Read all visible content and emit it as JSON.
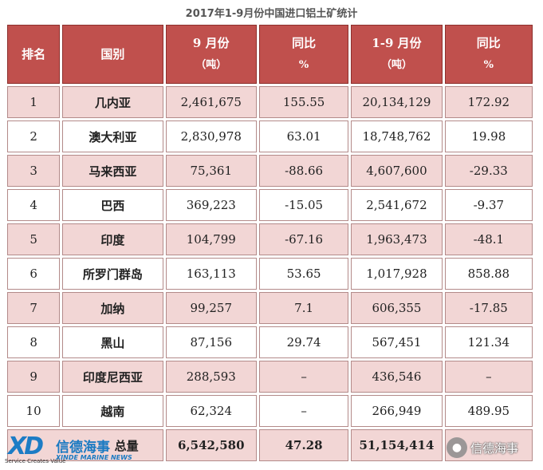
{
  "title": "2017年1-9月份中国进口铝土矿统计",
  "headers": {
    "rank": "排名",
    "country": "国别",
    "sep": "9 月份",
    "sep_unit": "（吨）",
    "sep_yoy": "同比",
    "sep_yoy_unit": "%",
    "ytd": "1-9 月份",
    "ytd_unit": "（吨）",
    "ytd_yoy": "同比",
    "ytd_yoy_unit": "%"
  },
  "rows": [
    {
      "rank": "1",
      "country": "几内亚",
      "sep": "2,461,675",
      "sep_yoy": "155.55",
      "ytd": "20,134,129",
      "ytd_yoy": "172.92"
    },
    {
      "rank": "2",
      "country": "澳大利亚",
      "sep": "2,830,978",
      "sep_yoy": "63.01",
      "ytd": "18,748,762",
      "ytd_yoy": "19.98"
    },
    {
      "rank": "3",
      "country": "马来西亚",
      "sep": "75,361",
      "sep_yoy": "-88.66",
      "ytd": "4,607,600",
      "ytd_yoy": "-29.33"
    },
    {
      "rank": "4",
      "country": "巴西",
      "sep": "369,223",
      "sep_yoy": "-15.05",
      "ytd": "2,541,672",
      "ytd_yoy": "-9.37"
    },
    {
      "rank": "5",
      "country": "印度",
      "sep": "104,799",
      "sep_yoy": "-67.16",
      "ytd": "1,963,473",
      "ytd_yoy": "-48.1"
    },
    {
      "rank": "6",
      "country": "所罗门群岛",
      "sep": "163,113",
      "sep_yoy": "53.65",
      "ytd": "1,017,928",
      "ytd_yoy": "858.88"
    },
    {
      "rank": "7",
      "country": "加纳",
      "sep": "99,257",
      "sep_yoy": "7.1",
      "ytd": "606,355",
      "ytd_yoy": "-17.85"
    },
    {
      "rank": "8",
      "country": "黑山",
      "sep": "87,156",
      "sep_yoy": "29.74",
      "ytd": "567,451",
      "ytd_yoy": "121.34"
    },
    {
      "rank": "9",
      "country": "印度尼西亚",
      "sep": "288,593",
      "sep_yoy": "–",
      "ytd": "436,546",
      "ytd_yoy": "–"
    },
    {
      "rank": "10",
      "country": "越南",
      "sep": "62,324",
      "sep_yoy": "–",
      "ytd": "266,949",
      "ytd_yoy": "489.95"
    }
  ],
  "total": {
    "label": "总量",
    "sep": "6,542,580",
    "sep_yoy": "47.28",
    "ytd": "51,154,414",
    "ytd_yoy": ""
  },
  "watermark": {
    "logo_mark": "XD",
    "tagline": "Service Creates Value",
    "brand_cn": "信德海事",
    "brand_en": "XINDE MARINE NEWS",
    "wechat_name": "信德海事"
  }
}
